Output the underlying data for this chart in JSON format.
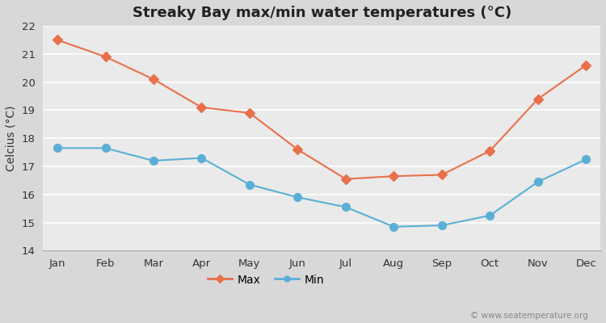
{
  "title": "Streaky Bay max/min water temperatures (°C)",
  "ylabel": "Celcius (°C)",
  "watermark": "© www.seatemperature.org",
  "months": [
    "Jan",
    "Feb",
    "Mar",
    "Apr",
    "May",
    "Jun",
    "Jul",
    "Aug",
    "Sep",
    "Oct",
    "Nov",
    "Dec"
  ],
  "max_temps": [
    21.5,
    20.9,
    20.1,
    19.1,
    18.9,
    17.6,
    16.55,
    16.65,
    16.7,
    17.55,
    19.4,
    20.6
  ],
  "min_temps": [
    17.65,
    17.65,
    17.2,
    17.3,
    16.35,
    15.9,
    15.55,
    14.85,
    14.9,
    15.25,
    16.45,
    17.25
  ],
  "max_color": "#e8704a",
  "min_color": "#5bafd6",
  "outer_bg_color": "#d8d8d8",
  "plot_bg_color": "#eaeaea",
  "grid_color": "#ffffff",
  "spine_color": "#aaaaaa",
  "ylim": [
    14,
    22
  ],
  "yticks": [
    14,
    15,
    16,
    17,
    18,
    19,
    20,
    21,
    22
  ],
  "title_fontsize": 13,
  "axis_label_fontsize": 10,
  "tick_fontsize": 9.5,
  "legend_fontsize": 10,
  "watermark_fontsize": 7.5,
  "line_width": 1.5,
  "marker_size_max": 6,
  "marker_size_min": 7
}
